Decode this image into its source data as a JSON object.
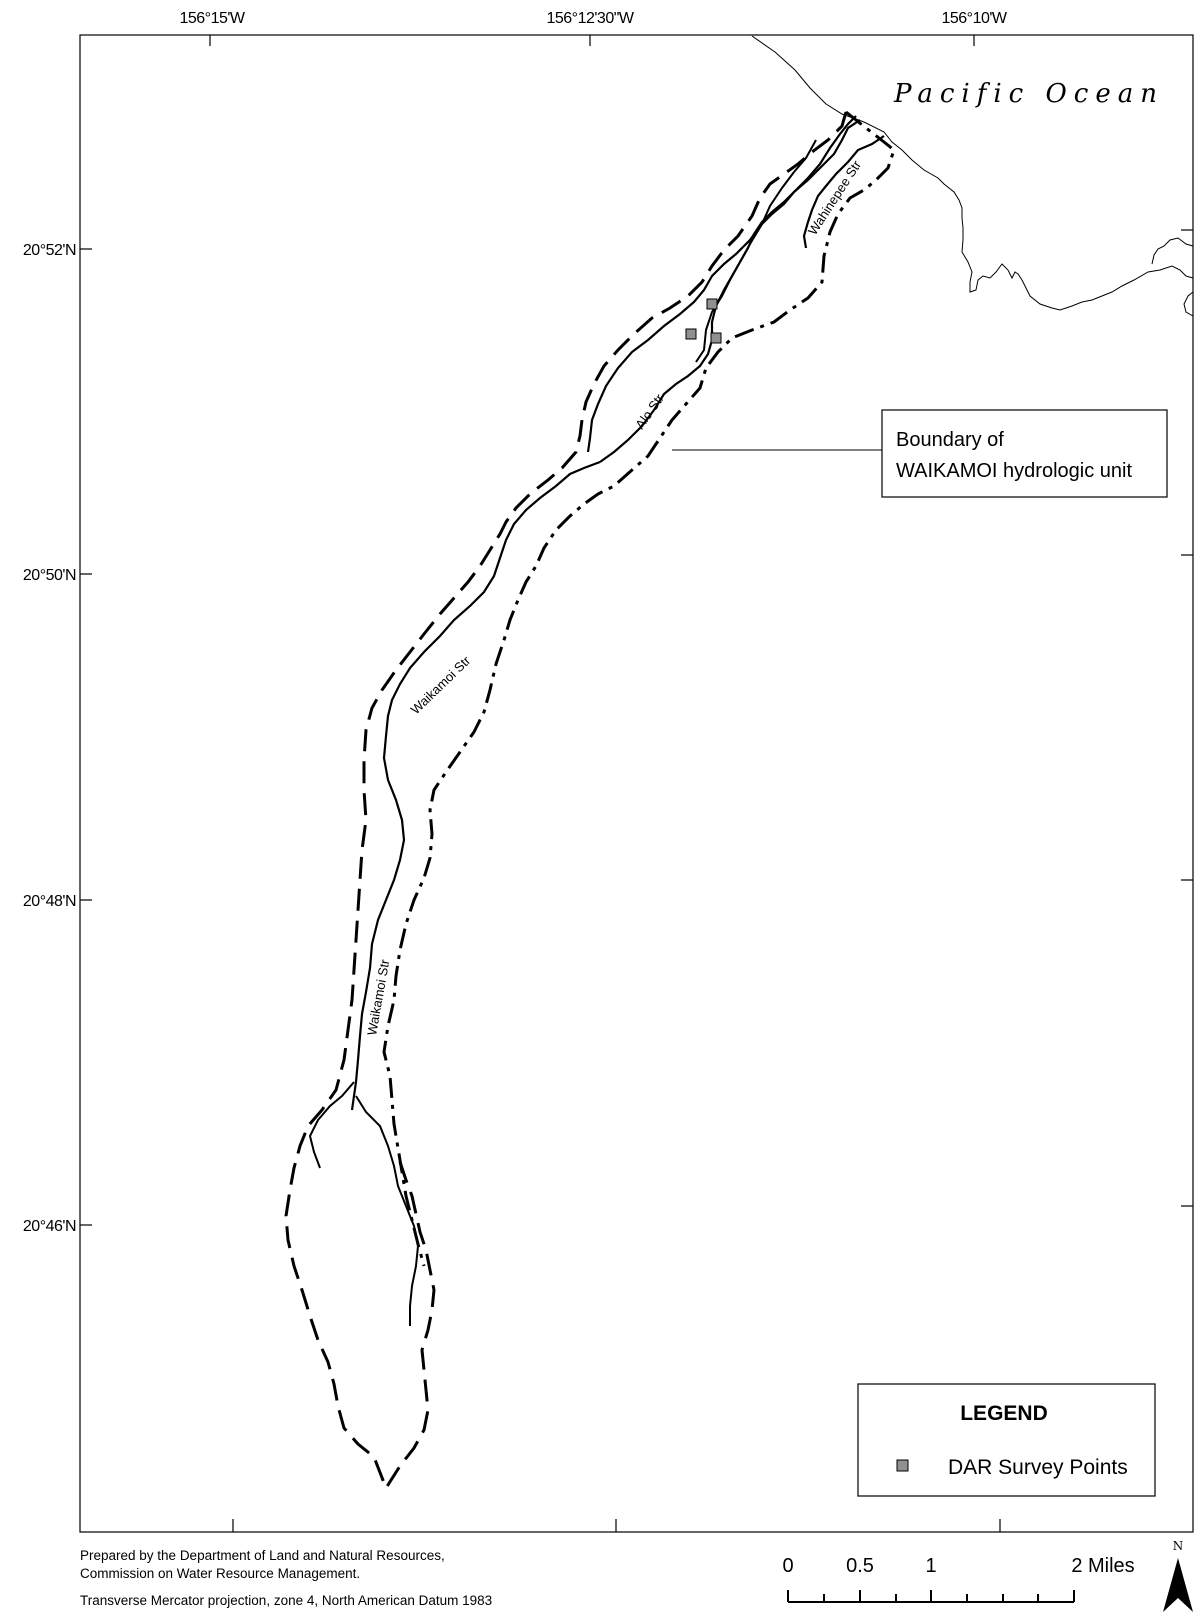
{
  "map": {
    "lon_ticks": [
      "156°15'W",
      "156°12'30\"W",
      "156°10'W"
    ],
    "lat_ticks": [
      "20°52'N",
      "20°50'N",
      "20°48'N",
      "20°46'N"
    ],
    "ocean_label": "Pacific Ocean",
    "stream_labels": {
      "wahinepee": "Wahinepee Str",
      "alo": "Alo Str",
      "waikamoi_upper": "Waikamoi Str",
      "waikamoi_lower": "Waikamoi Str"
    },
    "callout": {
      "line1": "Boundary of",
      "line2": "WAIKAMOI hydrologic unit"
    },
    "survey_point_color": "#909090"
  },
  "legend": {
    "title": "LEGEND",
    "item_label": "DAR Survey Points"
  },
  "credits": {
    "line1": "Prepared by the Department of Land and Natural Resources,",
    "line2": "Commission on Water Resource Management.",
    "line3": "Transverse Mercator projection, zone 4, North American Datum 1983"
  },
  "scale_bar": {
    "labels": [
      "0",
      "0.5",
      "1",
      "2 Miles"
    ]
  },
  "north_arrow": {
    "letter": "N"
  }
}
